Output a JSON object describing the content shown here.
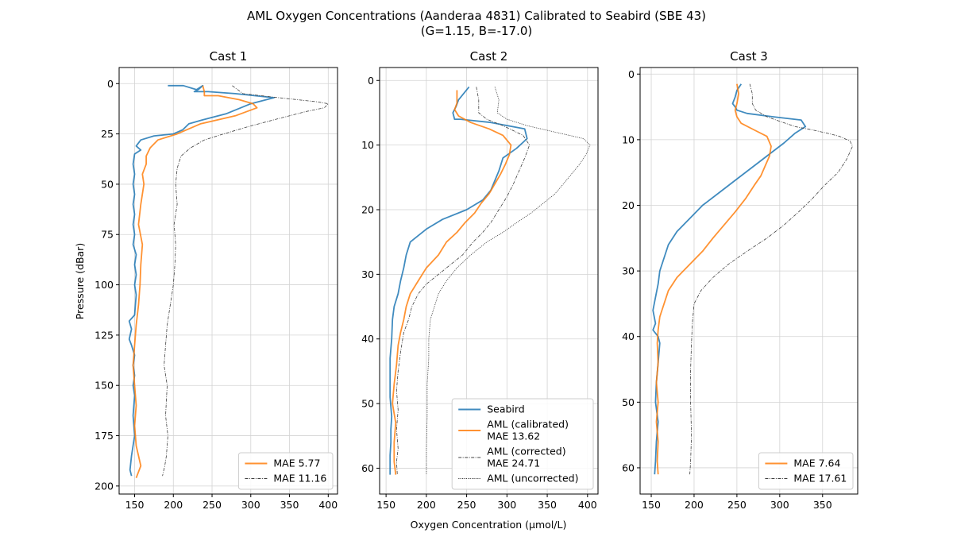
{
  "figure": {
    "title_line1": "AML Oxygen Concentrations (Aanderaa 4831) Calibrated to Seabird (SBE 43)",
    "title_line2": "(G=1.15, B=-17.0)",
    "xlabel": "Oxygen Concentration (μmol/L)",
    "ylabel": "Pressure (dBar)"
  },
  "colors": {
    "seabird": "#1f77b4",
    "calibrated": "#ff7f0e",
    "aml_other": "#404040",
    "grid": "#d3d3d3"
  },
  "chart_data": [
    {
      "type": "line",
      "title": "Cast 1",
      "xlim": [
        130,
        412
      ],
      "ylim": [
        204,
        -8
      ],
      "inverted_y": true,
      "xticks": [
        150,
        200,
        250,
        300,
        350,
        400
      ],
      "yticks": [
        0,
        25,
        50,
        75,
        100,
        125,
        150,
        175,
        200
      ],
      "grid": true,
      "legend": {
        "placement": "lower-right",
        "entries": [
          {
            "series": "calibrated",
            "label": "MAE 5.77"
          },
          {
            "series": "corrected",
            "label": "MAE 11.16"
          }
        ]
      },
      "series": [
        {
          "key": "seabird",
          "style": "solid",
          "x": [
            193,
            213,
            230,
            238,
            232,
            227,
            245,
            280,
            330,
            300,
            268,
            238,
            220,
            212,
            200,
            175,
            158,
            152,
            158,
            150,
            148,
            150,
            148,
            150,
            148,
            150,
            148,
            150,
            148,
            152,
            150,
            152,
            150,
            152,
            150,
            143,
            146,
            143,
            146,
            150,
            148,
            150,
            148,
            150,
            148,
            150,
            146,
            144,
            146
          ],
          "y": [
            1,
            1,
            3,
            1,
            3,
            4,
            4,
            5,
            7,
            10,
            15,
            18,
            20,
            23,
            25,
            26,
            28,
            31,
            33,
            35,
            40,
            45,
            50,
            55,
            60,
            65,
            70,
            75,
            80,
            85,
            90,
            95,
            100,
            105,
            115,
            118,
            122,
            127,
            130,
            135,
            140,
            145,
            150,
            155,
            165,
            175,
            185,
            192,
            195
          ]
        },
        {
          "key": "calibrated",
          "style": "solid",
          "x": [
            238,
            240,
            240,
            258,
            285,
            303,
            308,
            280,
            235,
            205,
            180,
            170,
            165,
            165,
            160,
            162,
            158,
            155,
            160,
            158,
            157,
            155,
            152,
            150,
            148,
            150,
            152,
            150,
            152,
            158,
            155,
            152
          ],
          "y": [
            1,
            4,
            6,
            6,
            8,
            10,
            12,
            16,
            20,
            25,
            28,
            32,
            36,
            40,
            45,
            50,
            60,
            70,
            80,
            90,
            100,
            110,
            120,
            130,
            140,
            150,
            160,
            170,
            180,
            190,
            193,
            196
          ]
        },
        {
          "key": "corrected",
          "style": "dashdot",
          "x": [
            276,
            290,
            336,
            385,
            400,
            395,
            370,
            340,
            300,
            265,
            240,
            222,
            210,
            205,
            203,
            205,
            201,
            203,
            202,
            200,
            196,
            192,
            190,
            188,
            192,
            190,
            193,
            191,
            189,
            186
          ],
          "y": [
            1,
            5,
            7,
            9,
            10,
            12,
            14,
            17,
            21,
            25,
            28,
            32,
            36,
            42,
            50,
            60,
            70,
            80,
            90,
            100,
            110,
            120,
            130,
            140,
            150,
            165,
            175,
            185,
            190,
            195
          ]
        },
        {
          "key": "uncorrected",
          "style": "dotted",
          "x": [],
          "y": []
        }
      ]
    },
    {
      "type": "line",
      "title": "Cast 2",
      "xlim": [
        142,
        413
      ],
      "ylim": [
        64,
        -2
      ],
      "inverted_y": true,
      "xticks": [
        150,
        200,
        250,
        300,
        350,
        400
      ],
      "yticks": [
        0,
        10,
        20,
        30,
        40,
        50,
        60
      ],
      "grid": true,
      "legend": {
        "placement": "lower-right",
        "entries": [
          {
            "series": "seabird",
            "label": "Seabird"
          },
          {
            "series": "calibrated",
            "label": "AML (calibrated)",
            "label2": "MAE 13.62"
          },
          {
            "series": "corrected",
            "label": "AML (corrected)",
            "label2": "MAE 24.71"
          },
          {
            "series": "uncorrected",
            "label": "AML (uncorrected)"
          }
        ]
      },
      "series": [
        {
          "key": "seabird",
          "style": "solid",
          "x": [
            253,
            240,
            237,
            233,
            235,
            242,
            280,
            322,
            325,
            312,
            295,
            290,
            285,
            280,
            270,
            250,
            220,
            200,
            180,
            175,
            172,
            168,
            165,
            160,
            158,
            157,
            155,
            155,
            155,
            157,
            156,
            156,
            155,
            155,
            155
          ],
          "y": [
            1,
            3,
            4,
            5,
            6,
            6,
            6.5,
            7.5,
            9,
            10.5,
            12,
            14,
            15.5,
            17,
            18.5,
            20,
            21.5,
            23,
            25,
            27,
            29,
            31,
            33,
            35,
            37,
            40,
            43,
            46,
            49,
            52,
            54,
            56,
            58,
            60,
            61
          ]
        },
        {
          "key": "calibrated",
          "style": "solid",
          "x": [
            238,
            238,
            235,
            240,
            255,
            278,
            295,
            305,
            303,
            298,
            292,
            285,
            278,
            268,
            260,
            248,
            238,
            225,
            215,
            200,
            190,
            180,
            175,
            172,
            168,
            165,
            163,
            160,
            158,
            162,
            160,
            160,
            162
          ],
          "y": [
            1.5,
            3.5,
            4.5,
            5.5,
            6.5,
            7.5,
            8.5,
            10,
            11.5,
            13,
            14.5,
            16,
            17.5,
            19,
            20.5,
            22,
            23.5,
            25,
            27,
            29,
            31,
            33,
            35,
            37,
            39,
            41,
            44,
            47,
            50,
            53,
            56,
            59,
            61
          ]
        },
        {
          "key": "corrected",
          "style": "dashdot",
          "x": [
            262,
            265,
            265,
            275,
            295,
            320,
            328,
            322,
            315,
            308,
            300,
            290,
            280,
            270,
            258,
            245,
            230,
            215,
            200,
            190,
            182,
            178,
            172,
            168,
            165,
            163,
            165,
            163,
            165,
            163,
            164
          ],
          "y": [
            1,
            3,
            5,
            6,
            7,
            8.5,
            10,
            12,
            14,
            16,
            18,
            20,
            22,
            23.5,
            25,
            27,
            28.5,
            30,
            31.5,
            33,
            35,
            37,
            39,
            42,
            45,
            48,
            51,
            54,
            57,
            59,
            61
          ]
        },
        {
          "key": "uncorrected",
          "style": "dotted",
          "x": [
            285,
            290,
            288,
            300,
            325,
            360,
            395,
            403,
            398,
            390,
            380,
            370,
            360,
            345,
            330,
            312,
            295,
            275,
            255,
            238,
            225,
            215,
            210,
            205,
            203,
            203,
            201,
            201,
            200,
            200
          ],
          "y": [
            1,
            3,
            5,
            6,
            7,
            8,
            9,
            10,
            11.5,
            13,
            14.5,
            16,
            17.5,
            19,
            20.5,
            22,
            23.5,
            25,
            27,
            29,
            31,
            33,
            35,
            37,
            40,
            43,
            47,
            52,
            57,
            61
          ]
        }
      ]
    },
    {
      "type": "line",
      "title": "Cast 3",
      "xlim": [
        137,
        391
      ],
      "ylim": [
        64,
        -1
      ],
      "inverted_y": true,
      "xticks": [
        150,
        200,
        250,
        300,
        350
      ],
      "yticks": [
        0,
        10,
        20,
        30,
        40,
        50,
        60
      ],
      "grid": true,
      "legend": {
        "placement": "lower-right",
        "entries": [
          {
            "series": "calibrated",
            "label": "MAE 7.64"
          },
          {
            "series": "corrected",
            "label": "MAE 17.61"
          }
        ]
      },
      "series": [
        {
          "key": "seabird",
          "style": "solid",
          "x": [
            255,
            250,
            248,
            245,
            248,
            250,
            262,
            292,
            325,
            330,
            318,
            305,
            290,
            270,
            250,
            230,
            210,
            195,
            180,
            170,
            165,
            160,
            158,
            155,
            152,
            155,
            152,
            158,
            160,
            158,
            156,
            155,
            158,
            156,
            155,
            154
          ],
          "y": [
            1.5,
            2.5,
            3.5,
            4.5,
            5,
            5.5,
            6,
            6.5,
            7,
            8,
            9,
            10.5,
            12,
            14,
            16,
            18,
            20,
            22,
            24,
            26,
            28,
            30,
            32,
            34,
            36,
            38,
            39,
            40,
            41,
            44,
            47,
            50,
            53,
            56,
            59,
            61
          ]
        },
        {
          "key": "calibrated",
          "style": "solid",
          "x": [
            250,
            252,
            250,
            248,
            250,
            255,
            270,
            285,
            290,
            288,
            283,
            278,
            270,
            260,
            248,
            235,
            222,
            210,
            195,
            180,
            170,
            165,
            160,
            158,
            157,
            158,
            156,
            158,
            156,
            158,
            157,
            158
          ],
          "y": [
            1.5,
            3,
            4.5,
            5.5,
            6.5,
            7.5,
            8.5,
            9.5,
            11,
            12.5,
            14,
            15.5,
            17,
            19,
            21,
            23,
            25,
            27,
            29,
            31,
            33,
            35,
            37,
            39,
            41,
            44,
            47,
            50,
            53,
            56,
            59,
            61
          ]
        },
        {
          "key": "corrected",
          "style": "dashdot",
          "x": [
            265,
            268,
            268,
            272,
            285,
            300,
            318,
            338,
            355,
            370,
            382,
            385,
            378,
            368,
            352,
            338,
            322,
            305,
            285,
            262,
            240,
            222,
            208,
            200,
            198,
            197,
            196,
            196,
            197,
            196,
            195
          ],
          "y": [
            1.5,
            3,
            4.5,
            5.5,
            6.5,
            7.2,
            8,
            8.5,
            9,
            9.5,
            10.2,
            11,
            13,
            15,
            17,
            19,
            21,
            23,
            25,
            27,
            29,
            31,
            33,
            35,
            38,
            41,
            45,
            50,
            55,
            59,
            61
          ]
        },
        {
          "key": "uncorrected",
          "style": "dotted",
          "x": [],
          "y": []
        }
      ]
    }
  ]
}
